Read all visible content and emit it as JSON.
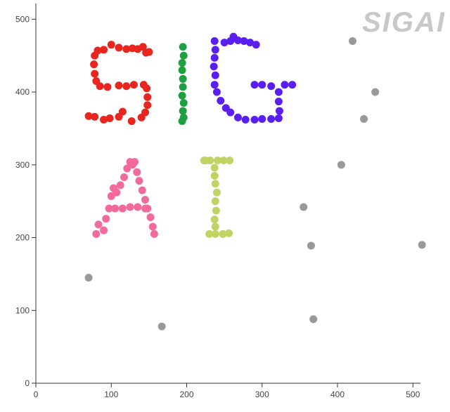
{
  "watermark": "SIGAI",
  "chart_data": {
    "type": "scatter",
    "title": "",
    "xlabel": "",
    "ylabel": "",
    "xlim": [
      0,
      510
    ],
    "ylim": [
      0,
      510
    ],
    "xticks": [
      0,
      100,
      200,
      300,
      400,
      500
    ],
    "yticks": [
      0,
      100,
      200,
      300,
      400,
      500
    ],
    "grid": false,
    "series": [
      {
        "color": "#e8251e",
        "points": [
          [
            70,
            367
          ],
          [
            78,
            366
          ],
          [
            90,
            362
          ],
          [
            98,
            364
          ],
          [
            110,
            366
          ],
          [
            115,
            373
          ],
          [
            127,
            360
          ],
          [
            140,
            365
          ],
          [
            145,
            372
          ],
          [
            148,
            382
          ],
          [
            148,
            393
          ],
          [
            147,
            405
          ],
          [
            143,
            410
          ],
          [
            130,
            410
          ],
          [
            120,
            408
          ],
          [
            110,
            409
          ],
          [
            95,
            407
          ],
          [
            85,
            408
          ],
          [
            80,
            415
          ],
          [
            78,
            425
          ],
          [
            77,
            438
          ],
          [
            78,
            450
          ],
          [
            82,
            457
          ],
          [
            90,
            458
          ],
          [
            100,
            465
          ],
          [
            110,
            461
          ],
          [
            120,
            459
          ],
          [
            128,
            460
          ],
          [
            135,
            459
          ],
          [
            142,
            462
          ],
          [
            146,
            454
          ],
          [
            150,
            455
          ]
        ]
      },
      {
        "color": "#1fa040",
        "points": [
          [
            195,
            462
          ],
          [
            196,
            450
          ],
          [
            194,
            440
          ],
          [
            194,
            430
          ],
          [
            195,
            418
          ],
          [
            195,
            407
          ],
          [
            194,
            395
          ],
          [
            196,
            385
          ],
          [
            195,
            374
          ],
          [
            196,
            365
          ],
          [
            194,
            360
          ]
        ]
      },
      {
        "color": "#5b1ef0",
        "points": [
          [
            237,
            470
          ],
          [
            250,
            468
          ],
          [
            258,
            470
          ],
          [
            268,
            471
          ],
          [
            276,
            470
          ],
          [
            284,
            468
          ],
          [
            292,
            465
          ],
          [
            238,
            458
          ],
          [
            237,
            447
          ],
          [
            236,
            435
          ],
          [
            238,
            423
          ],
          [
            237,
            410
          ],
          [
            240,
            400
          ],
          [
            245,
            388
          ],
          [
            252,
            378
          ],
          [
            258,
            372
          ],
          [
            268,
            365
          ],
          [
            278,
            362
          ],
          [
            290,
            362
          ],
          [
            300,
            363
          ],
          [
            312,
            363
          ],
          [
            322,
            364
          ],
          [
            323,
            374
          ],
          [
            322,
            387
          ],
          [
            322,
            400
          ],
          [
            312,
            408
          ],
          [
            300,
            410
          ],
          [
            290,
            410
          ],
          [
            330,
            410
          ],
          [
            340,
            410
          ],
          [
            262,
            476
          ]
        ]
      },
      {
        "color": "#f2699e",
        "points": [
          [
            80,
            205
          ],
          [
            83,
            218
          ],
          [
            90,
            210
          ],
          [
            93,
            226
          ],
          [
            97,
            240
          ],
          [
            100,
            257
          ],
          [
            103,
            268
          ],
          [
            107,
            262
          ],
          [
            112,
            272
          ],
          [
            117,
            283
          ],
          [
            121,
            295
          ],
          [
            125,
            304
          ],
          [
            131,
            304
          ],
          [
            134,
            290
          ],
          [
            137,
            278
          ],
          [
            141,
            265
          ],
          [
            145,
            252
          ],
          [
            148,
            240
          ],
          [
            152,
            228
          ],
          [
            155,
            215
          ],
          [
            157,
            205
          ],
          [
            105,
            240
          ],
          [
            115,
            240
          ],
          [
            125,
            242
          ],
          [
            135,
            242
          ],
          [
            145,
            240
          ],
          [
            128,
            300
          ]
        ]
      },
      {
        "color": "#c2d366",
        "points": [
          [
            223,
            306
          ],
          [
            231,
            306
          ],
          [
            241,
            306
          ],
          [
            249,
            306
          ],
          [
            257,
            306
          ],
          [
            237,
            296
          ],
          [
            237,
            285
          ],
          [
            238,
            274
          ],
          [
            240,
            262
          ],
          [
            238,
            250
          ],
          [
            239,
            237
          ],
          [
            237,
            225
          ],
          [
            238,
            215
          ],
          [
            230,
            205
          ],
          [
            238,
            205
          ],
          [
            248,
            205
          ],
          [
            256,
            206
          ],
          [
            225,
            306
          ]
        ]
      },
      {
        "color": "#999999",
        "points": [
          [
            70,
            145
          ],
          [
            167,
            78
          ],
          [
            355,
            242
          ],
          [
            365,
            189
          ],
          [
            368,
            88
          ],
          [
            405,
            300
          ],
          [
            420,
            470
          ],
          [
            435,
            363
          ],
          [
            450,
            400
          ],
          [
            512,
            190
          ]
        ]
      }
    ]
  }
}
